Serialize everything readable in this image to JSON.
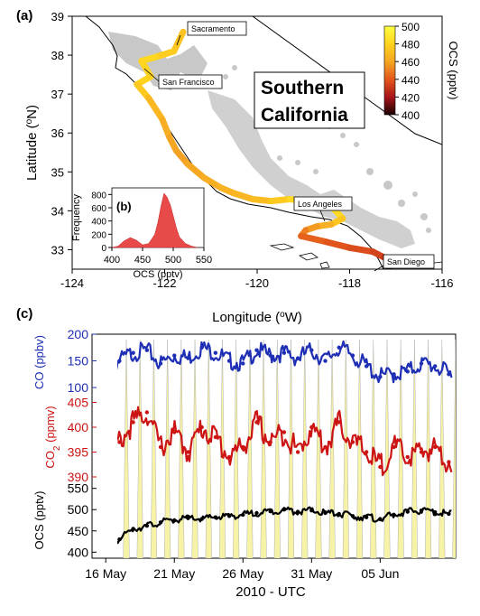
{
  "panel_a": {
    "label": "(a)",
    "region_title_line1": "Southern",
    "region_title_line2": "California",
    "city_labels": [
      "Sacramento",
      "San Francisco",
      "Los Angeles",
      "San Diego"
    ],
    "colorbar": {
      "title": "OCS (pptv)",
      "ticks": [
        500,
        480,
        460,
        440,
        420,
        400
      ],
      "colors": [
        "#ffff40",
        "#ffd21e",
        "#f5a623",
        "#e4571c",
        "#a8141a",
        "#1a0000"
      ]
    }
  },
  "panel_b": {
    "label": "(b)"
  },
  "panel_c": {
    "label": "(c)"
  },
  "chart_data": [
    {
      "type": "line",
      "panel": "(a)",
      "xlabel": "Longitude (°W)",
      "ylabel": "Latitude (°N)",
      "xlim": [
        -124,
        -116
      ],
      "ylim": [
        32.5,
        39
      ],
      "xticks": [
        -124,
        -122,
        -120,
        -118,
        -116
      ],
      "yticks": [
        33,
        34,
        35,
        36,
        37,
        38,
        39
      ],
      "series": [
        {
          "color_by": "OCS (pptv)",
          "x": [
            -121.6,
            -121.8,
            -122.2,
            -122.5,
            -122.3,
            -122.6,
            -122.35,
            -122.05,
            -121.9,
            -121.75,
            -121.5,
            -121.15,
            -120.8,
            -120.5,
            -120.1,
            -119.7,
            -119.3,
            -118.9,
            -118.5,
            -118.3,
            -118.15,
            -118.4,
            -118.7,
            -118.95,
            -119.05,
            -118.5,
            -118.0,
            -117.5,
            -117.25,
            -117.15
          ],
          "y": [
            38.6,
            38.1,
            37.95,
            37.85,
            37.45,
            37.25,
            36.9,
            36.35,
            35.9,
            35.55,
            35.2,
            34.85,
            34.6,
            34.45,
            34.3,
            34.25,
            34.3,
            34.25,
            34.2,
            34.0,
            33.8,
            33.65,
            33.6,
            33.5,
            33.35,
            33.2,
            33.05,
            32.95,
            32.8,
            32.72
          ],
          "ocs": [
            470,
            475,
            480,
            485,
            478,
            482,
            470,
            465,
            462,
            458,
            460,
            462,
            465,
            466,
            468,
            472,
            480,
            485,
            490,
            488,
            480,
            470,
            460,
            455,
            445,
            440,
            438,
            436,
            432,
            430
          ]
        }
      ]
    },
    {
      "type": "area",
      "panel": "(b)",
      "xlabel": "OCS (pptv)",
      "ylabel": "Frequency",
      "xlim": [
        400,
        550
      ],
      "ylim": [
        0,
        900
      ],
      "xticks": [
        400,
        450,
        500,
        550
      ],
      "yticks": [
        0,
        200,
        400,
        600,
        800
      ],
      "x": [
        400,
        410,
        420,
        430,
        440,
        450,
        460,
        470,
        475,
        480,
        485,
        490,
        495,
        500,
        505,
        510,
        520,
        530,
        540
      ],
      "values": [
        0,
        20,
        100,
        150,
        110,
        40,
        60,
        200,
        380,
        620,
        820,
        760,
        650,
        480,
        300,
        160,
        60,
        20,
        0
      ]
    },
    {
      "type": "line",
      "panel": "(c)",
      "xlabel": "2010 - UTC",
      "x_tick_labels": [
        "16 May",
        "21 May",
        "26 May",
        "31 May",
        "05 Jun"
      ],
      "series": [
        {
          "name": "CO (ppbv)",
          "color": "#1f2fb5",
          "ylim": [
            95,
            200
          ],
          "yticks": [
            100,
            150,
            200
          ],
          "x_days": [
            0,
            1,
            2,
            3,
            4,
            5,
            6,
            7,
            8,
            9,
            10,
            11,
            12,
            13,
            14,
            15,
            16,
            17,
            18,
            19,
            20,
            21,
            22,
            23,
            24,
            25
          ],
          "values": [
            140,
            150,
            165,
            170,
            145,
            160,
            155,
            175,
            165,
            150,
            145,
            170,
            160,
            165,
            155,
            170,
            150,
            175,
            160,
            140,
            120,
            125,
            130,
            145,
            140,
            125
          ]
        },
        {
          "name": "CO2 (ppmv)",
          "color": "#cc1414",
          "ylim": [
            390,
            406
          ],
          "yticks": [
            390,
            395,
            400,
            405
          ],
          "x_days": [
            0,
            1,
            2,
            3,
            4,
            5,
            6,
            7,
            8,
            9,
            10,
            11,
            12,
            13,
            14,
            15,
            16,
            17,
            18,
            19,
            20,
            21,
            22,
            23,
            24,
            25
          ],
          "values": [
            393,
            397,
            401,
            403,
            396,
            399,
            395,
            400,
            398,
            394,
            396,
            401,
            397,
            399,
            395,
            400,
            396,
            401,
            397,
            395,
            392,
            396,
            394,
            395,
            396,
            393
          ]
        },
        {
          "name": "OCS (pptv)",
          "color": "#000000",
          "ylim": [
            390,
            560
          ],
          "yticks": [
            400,
            450,
            500,
            550
          ],
          "x_days": [
            0,
            1,
            2,
            3,
            4,
            5,
            6,
            7,
            8,
            9,
            10,
            11,
            12,
            13,
            14,
            15,
            16,
            17,
            18,
            19,
            20,
            21,
            22,
            23,
            24,
            25
          ],
          "values": [
            415,
            430,
            455,
            462,
            470,
            475,
            480,
            478,
            482,
            485,
            488,
            492,
            496,
            500,
            495,
            498,
            492,
            490,
            485,
            482,
            478,
            488,
            495,
            498,
            494,
            490
          ]
        }
      ]
    }
  ]
}
